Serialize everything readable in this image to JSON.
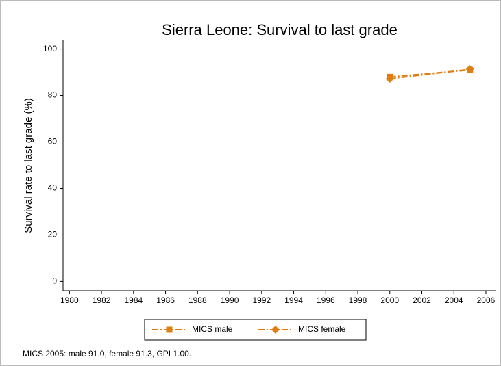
{
  "chart_data": {
    "type": "line",
    "title": "Sierra Leone: Survival to last grade",
    "y_label": "Survival rate to last grade (%)",
    "note": "MICS 2005: male 91.0, female 91.3, GPI 1.00.",
    "x": [
      2000,
      2005
    ],
    "series": [
      {
        "name": "MICS male",
        "color": "#e07f10",
        "marker": "square",
        "values": [
          88.0,
          91.0
        ]
      },
      {
        "name": "MICS female",
        "color": "#e07f10",
        "marker": "diamond",
        "values": [
          87.2,
          91.3
        ]
      }
    ],
    "xlim": [
      1979.6,
      2006.6
    ],
    "xticks": [
      1980,
      1982,
      1984,
      1986,
      1988,
      1990,
      1992,
      1994,
      1996,
      1998,
      2000,
      2002,
      2004,
      2006
    ],
    "ylim": [
      -4,
      104
    ],
    "yticks": [
      0,
      20,
      40,
      60,
      80,
      100
    ],
    "grid": false,
    "legend": "bottom"
  }
}
